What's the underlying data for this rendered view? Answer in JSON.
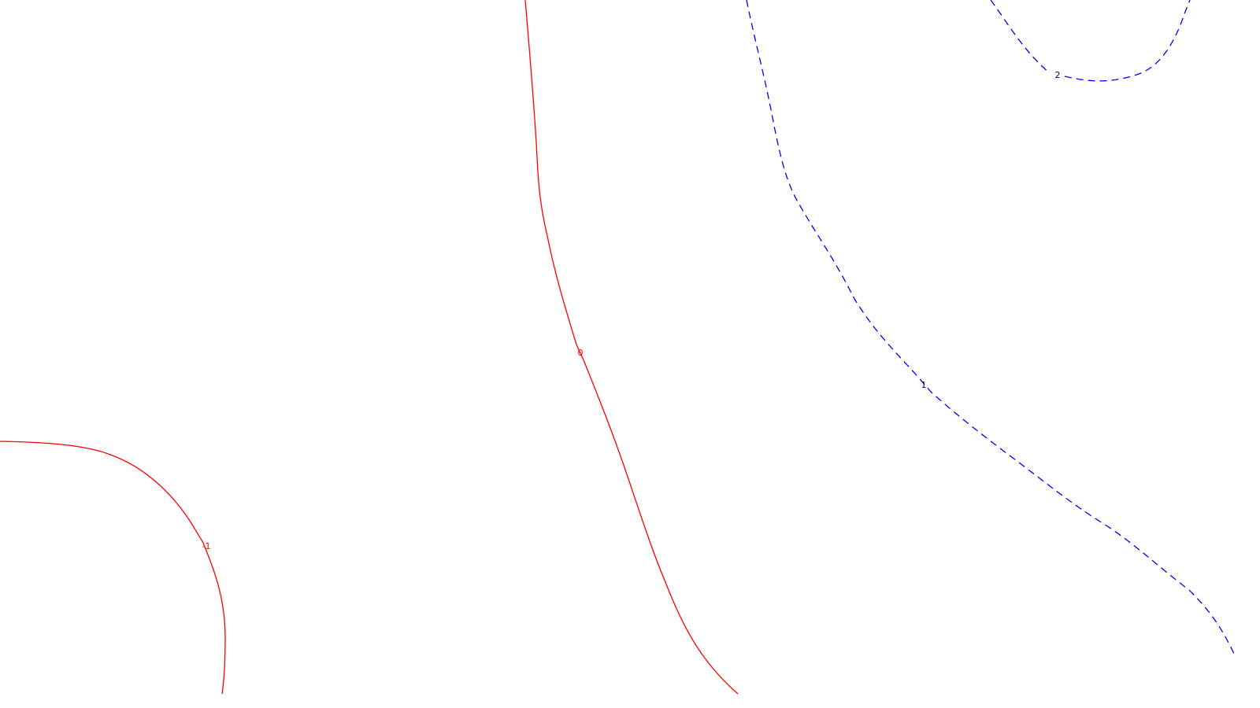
{
  "chart_data": {
    "type": "contour",
    "title": "",
    "xlabel": "",
    "ylabel": "",
    "grid": false,
    "legend": "none",
    "levels": [
      {
        "value": -1,
        "label": "-1",
        "color": "#ff0000",
        "style": "solid"
      },
      {
        "value": 0,
        "label": "0",
        "color": "#ff0000",
        "style": "solid"
      },
      {
        "value": 1,
        "label": "1",
        "color": "#0000ff",
        "style": "dashed"
      },
      {
        "value": 2,
        "label": "2",
        "color": "#0000ff",
        "style": "dashed"
      }
    ]
  },
  "colors": {
    "negative_and_zero_levels": "#ff0000",
    "positive_levels": "#0000ff",
    "positive_label_text": "#000080",
    "background": "#ffffff"
  }
}
